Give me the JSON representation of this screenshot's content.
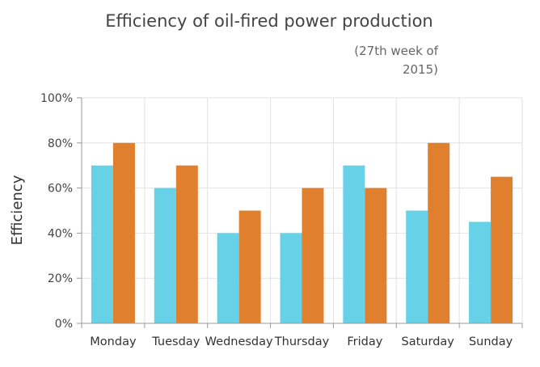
{
  "chart_data": {
    "type": "bar",
    "title": "Efficiency of oil-fired power production",
    "subtitle_lines": [
      "(27th week of",
      "2015)"
    ],
    "xlabel": "",
    "ylabel": "Efficiency",
    "categories": [
      "Monday",
      "Tuesday",
      "Wednesday",
      "Thursday",
      "Friday",
      "Saturday",
      "Sunday"
    ],
    "series": [
      {
        "values": [
          70,
          60,
          40,
          40,
          70,
          50,
          45
        ],
        "color": "#67d1e7"
      },
      {
        "values": [
          80,
          70,
          50,
          60,
          60,
          80,
          65
        ],
        "color": "#e0802e"
      }
    ],
    "ylim": [
      0,
      100
    ],
    "yticks": [
      0,
      20,
      40,
      60,
      80,
      100
    ],
    "ytick_labels": [
      "0%",
      "20%",
      "40%",
      "60%",
      "80%",
      "100%"
    ],
    "grid": true,
    "legend": "none"
  }
}
